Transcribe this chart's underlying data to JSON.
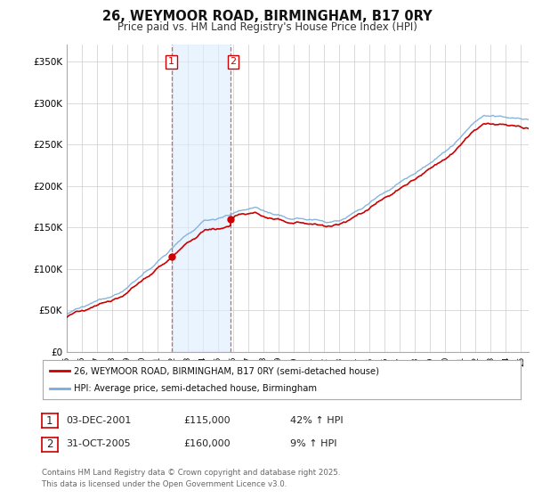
{
  "title": "26, WEYMOOR ROAD, BIRMINGHAM, B17 0RY",
  "subtitle": "Price paid vs. HM Land Registry's House Price Index (HPI)",
  "ylim": [
    0,
    370000
  ],
  "yticks": [
    0,
    50000,
    100000,
    150000,
    200000,
    250000,
    300000,
    350000
  ],
  "ytick_labels": [
    "£0",
    "£50K",
    "£100K",
    "£150K",
    "£200K",
    "£250K",
    "£300K",
    "£350K"
  ],
  "xlim_start": 1995.0,
  "xlim_end": 2025.5,
  "background_color": "#ffffff",
  "grid_color": "#cccccc",
  "sale1_date": 2001.917,
  "sale1_price": 115000,
  "sale2_date": 2005.833,
  "sale2_price": 160000,
  "red_line_color": "#cc0000",
  "blue_line_color": "#7aabdc",
  "shade_color": "#ddeeff",
  "legend_label_red": "26, WEYMOOR ROAD, BIRMINGHAM, B17 0RY (semi-detached house)",
  "legend_label_blue": "HPI: Average price, semi-detached house, Birmingham",
  "footer_text": "Contains HM Land Registry data © Crown copyright and database right 2025.\nThis data is licensed under the Open Government Licence v3.0.",
  "table_row1": [
    "1",
    "03-DEC-2001",
    "£115,000",
    "42% ↑ HPI"
  ],
  "table_row2": [
    "2",
    "31-OCT-2005",
    "£160,000",
    "9% ↑ HPI"
  ]
}
